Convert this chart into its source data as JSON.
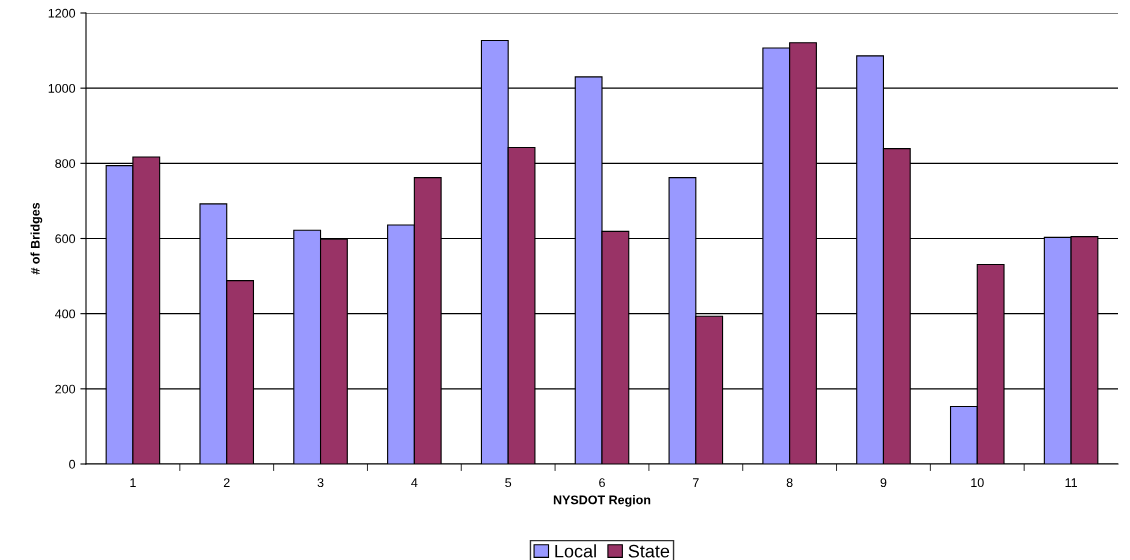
{
  "chart_data": {
    "type": "bar",
    "xlabel": "NYSDOT Region",
    "ylabel": "# of Bridges",
    "categories": [
      "1",
      "2",
      "3",
      "4",
      "5",
      "6",
      "7",
      "8",
      "9",
      "10",
      "11"
    ],
    "series": [
      {
        "name": "Local",
        "color": "#9999ff",
        "values": [
          794,
          692,
          622,
          636,
          1127,
          1030,
          762,
          1107,
          1086,
          153,
          603
        ]
      },
      {
        "name": "State",
        "color": "#993366",
        "values": [
          817,
          488,
          598,
          762,
          842,
          619,
          393,
          1121,
          839,
          531,
          605
        ]
      }
    ],
    "ylim": [
      0,
      1200
    ],
    "yticks": [
      0,
      200,
      400,
      600,
      800,
      1000,
      1200
    ],
    "grid": "y",
    "legend": "bottom"
  }
}
